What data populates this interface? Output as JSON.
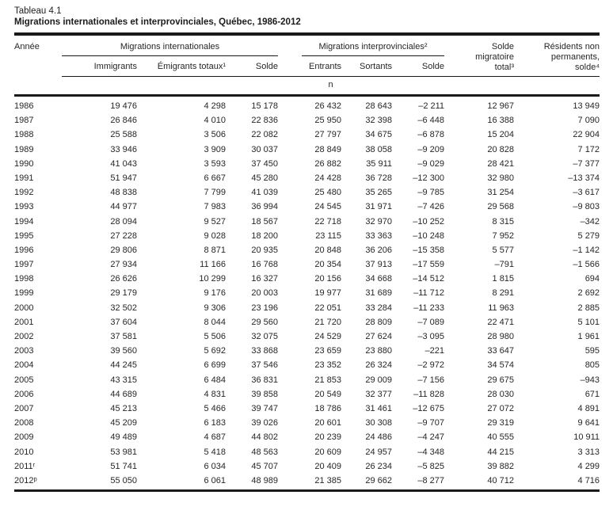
{
  "title": {
    "label": "Tableau 4.1",
    "subtitle": "Migrations internationales et interprovinciales, Québec, 1986-2012"
  },
  "table": {
    "col_year": "Année",
    "group_international": "Migrations internationales",
    "group_interprovincial": "Migrations interprovinciales²",
    "col_solde_migratoire": "Solde\nmigratoire\ntotal³",
    "col_residents": "Résidents non\npermanents,\nsolde⁴",
    "sub_headers": [
      "Immigrants",
      "Émigrants totaux¹",
      "Solde",
      "Entrants",
      "Sortants",
      "Solde"
    ],
    "unit": "n",
    "rows": [
      [
        "1986",
        "19 476",
        "4 298",
        "15 178",
        "26 432",
        "28 643",
        "–2 211",
        "12 967",
        "13 949"
      ],
      [
        "1987",
        "26 846",
        "4 010",
        "22 836",
        "25 950",
        "32 398",
        "–6 448",
        "16 388",
        "7 090"
      ],
      [
        "1988",
        "25 588",
        "3 506",
        "22 082",
        "27 797",
        "34 675",
        "–6 878",
        "15 204",
        "22 904"
      ],
      [
        "1989",
        "33 946",
        "3 909",
        "30 037",
        "28 849",
        "38 058",
        "–9 209",
        "20 828",
        "7 172"
      ],
      [
        "1990",
        "41 043",
        "3 593",
        "37 450",
        "26 882",
        "35 911",
        "–9 029",
        "28 421",
        "–7 377"
      ],
      [
        "1991",
        "51 947",
        "6 667",
        "45 280",
        "24 428",
        "36 728",
        "–12 300",
        "32 980",
        "–13 374"
      ],
      [
        "1992",
        "48 838",
        "7 799",
        "41 039",
        "25 480",
        "35 265",
        "–9 785",
        "31 254",
        "–3 617"
      ],
      [
        "1993",
        "44 977",
        "7 983",
        "36 994",
        "24 545",
        "31 971",
        "–7 426",
        "29 568",
        "–9 803"
      ],
      [
        "1994",
        "28 094",
        "9 527",
        "18 567",
        "22 718",
        "32 970",
        "–10 252",
        "8 315",
        "–342"
      ],
      [
        "1995",
        "27 228",
        "9 028",
        "18 200",
        "23 115",
        "33 363",
        "–10 248",
        "7 952",
        "5 279"
      ],
      [
        "1996",
        "29 806",
        "8 871",
        "20 935",
        "20 848",
        "36 206",
        "–15 358",
        "5 577",
        "–1 142"
      ],
      [
        "1997",
        "27 934",
        "11 166",
        "16 768",
        "20 354",
        "37 913",
        "–17 559",
        "–791",
        "–1 566"
      ],
      [
        "1998",
        "26 626",
        "10 299",
        "16 327",
        "20 156",
        "34 668",
        "–14 512",
        "1 815",
        "694"
      ],
      [
        "1999",
        "29 179",
        "9 176",
        "20 003",
        "19 977",
        "31 689",
        "–11 712",
        "8 291",
        "2 692"
      ],
      [
        "2000",
        "32 502",
        "9 306",
        "23 196",
        "22 051",
        "33 284",
        "–11 233",
        "11 963",
        "2 885"
      ],
      [
        "2001",
        "37 604",
        "8 044",
        "29 560",
        "21 720",
        "28 809",
        "–7 089",
        "22 471",
        "5 101"
      ],
      [
        "2002",
        "37 581",
        "5 506",
        "32 075",
        "24 529",
        "27 624",
        "–3 095",
        "28 980",
        "1 961"
      ],
      [
        "2003",
        "39 560",
        "5 692",
        "33 868",
        "23 659",
        "23 880",
        "–221",
        "33 647",
        "595"
      ],
      [
        "2004",
        "44 245",
        "6 699",
        "37 546",
        "23 352",
        "26 324",
        "–2 972",
        "34 574",
        "805"
      ],
      [
        "2005",
        "43 315",
        "6 484",
        "36 831",
        "21 853",
        "29 009",
        "–7 156",
        "29 675",
        "–943"
      ],
      [
        "2006",
        "44 689",
        "4 831",
        "39 858",
        "20 549",
        "32 377",
        "–11 828",
        "28 030",
        "671"
      ],
      [
        "2007",
        "45 213",
        "5 466",
        "39 747",
        "18 786",
        "31 461",
        "–12 675",
        "27 072",
        "4 891"
      ],
      [
        "2008",
        "45 209",
        "6 183",
        "39 026",
        "20 601",
        "30 308",
        "–9 707",
        "29 319",
        "9 641"
      ],
      [
        "2009",
        "49 489",
        "4 687",
        "44 802",
        "20 239",
        "24 486",
        "–4 247",
        "40 555",
        "10 911"
      ],
      [
        "2010",
        "53 981",
        "5 418",
        "48 563",
        "20 609",
        "24 957",
        "–4 348",
        "44 215",
        "3 313"
      ],
      [
        "2011ʳ",
        "51 741",
        "6 034",
        "45 707",
        "20 409",
        "26 234",
        "–5 825",
        "39 882",
        "4 299"
      ],
      [
        "2012ᵖ",
        "55 050",
        "6 061",
        "48 989",
        "21 385",
        "29 662",
        "–8 277",
        "40 712",
        "4 716"
      ]
    ]
  }
}
